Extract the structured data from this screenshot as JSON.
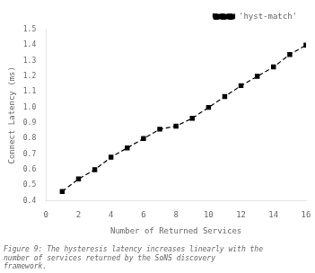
{
  "chart_data": {
    "type": "line",
    "x": [
      1,
      2,
      3,
      4,
      5,
      6,
      7,
      8,
      9,
      10,
      11,
      12,
      13,
      14,
      15,
      16
    ],
    "series": [
      {
        "name": "'hyst-match'",
        "color": "#000000",
        "marker": "square",
        "line_style": "dashed",
        "values": [
          0.46,
          0.54,
          0.6,
          0.68,
          0.74,
          0.8,
          0.86,
          0.88,
          0.93,
          1.0,
          1.07,
          1.14,
          1.2,
          1.26,
          1.34,
          1.4
        ]
      }
    ],
    "xlabel": "Number of Returned Services",
    "ylabel": "Connect Latency (ms)",
    "xlim": [
      0,
      16
    ],
    "ylim": [
      0.4,
      1.5
    ],
    "xticks": [
      0,
      2,
      4,
      6,
      8,
      10,
      12,
      14,
      16
    ],
    "yticks": [
      0.4,
      0.5,
      0.6,
      0.7,
      0.8,
      0.9,
      {
        "value": 1,
        "label": "1.0"
      },
      1.1,
      1.2,
      1.3,
      1.4,
      1.5
    ],
    "caption": "Figure 9: The hysteresis latency increases linearly with the\nnumber of services returned by the SoNS discovery\nframework.",
    "legend": "upper right",
    "grid": false
  }
}
